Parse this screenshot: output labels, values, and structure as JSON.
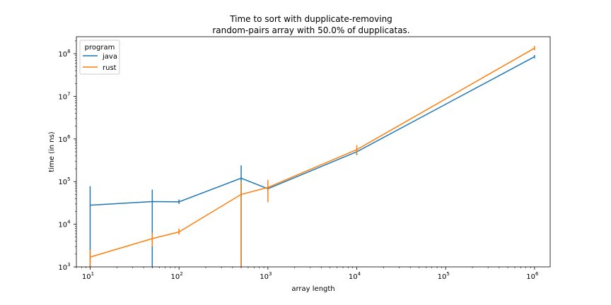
{
  "chart_data": {
    "type": "line",
    "title_line1": "Time to sort with dupplicate-removing",
    "title_line2": "random-pairs array with 50.0% of dupplicatas.",
    "xlabel": "array length",
    "ylabel": "time (in ns)",
    "xscale": "log",
    "yscale": "log",
    "xlim": [
      7,
      1500000
    ],
    "ylim": [
      1000,
      250000000
    ],
    "grid": false,
    "legend_position": "top-left",
    "legend_title": "program",
    "x_ticks": [
      {
        "value": 10,
        "base": "10",
        "exp": "1"
      },
      {
        "value": 100,
        "base": "10",
        "exp": "2"
      },
      {
        "value": 1000,
        "base": "10",
        "exp": "3"
      },
      {
        "value": 10000,
        "base": "10",
        "exp": "4"
      },
      {
        "value": 100000,
        "base": "10",
        "exp": "5"
      },
      {
        "value": 1000000,
        "base": "10",
        "exp": "6"
      }
    ],
    "y_ticks": [
      {
        "value": 1000,
        "base": "10",
        "exp": "3"
      },
      {
        "value": 10000,
        "base": "10",
        "exp": "4"
      },
      {
        "value": 100000,
        "base": "10",
        "exp": "5"
      },
      {
        "value": 1000000,
        "base": "10",
        "exp": "6"
      },
      {
        "value": 10000000,
        "base": "10",
        "exp": "7"
      },
      {
        "value": 100000000,
        "base": "10",
        "exp": "8"
      }
    ],
    "series": [
      {
        "name": "java",
        "color": "#1f77b4",
        "x": [
          10,
          50,
          100,
          500,
          1000,
          10000,
          1000000
        ],
        "y": [
          28000,
          34000,
          33500,
          120000,
          68000,
          500000,
          85000000
        ],
        "err_low": [
          1000,
          1000,
          30000,
          1000,
          60000,
          420000,
          78000000
        ],
        "err_high": [
          78000,
          65000,
          38000,
          240000,
          78000,
          590000,
          93000000
        ]
      },
      {
        "name": "rust",
        "color": "#ff7f0e",
        "x": [
          10,
          50,
          100,
          500,
          1000,
          10000,
          1000000
        ],
        "y": [
          1700,
          4600,
          6600,
          50000,
          73000,
          560000,
          135000000
        ],
        "err_low": [
          1000,
          3000,
          5700,
          1000,
          33000,
          440000,
          120000000
        ],
        "err_high": [
          2500,
          6300,
          7900,
          100000,
          110000,
          720000,
          152000000
        ]
      }
    ]
  }
}
